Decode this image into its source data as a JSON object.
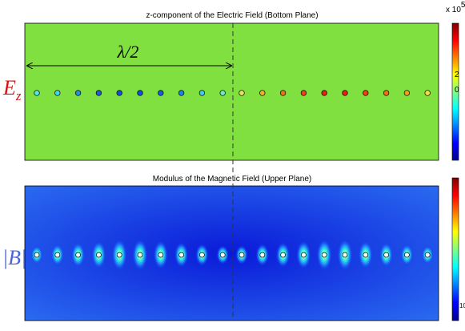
{
  "top_panel": {
    "title": "z-component of the Electric Field (Bottom Plane)",
    "label": {
      "main": "E",
      "sub": "z"
    },
    "annotation": "λ/2",
    "colorbar": {
      "multiplier": "x 10",
      "exponent": "5",
      "ticks": [
        "2",
        "0"
      ]
    }
  },
  "bottom_panel": {
    "title": "Modulus of the Magnetic Field (Upper Plane)",
    "label": "|B|",
    "colorbar": {
      "ticks": [
        "10"
      ]
    }
  }
}
